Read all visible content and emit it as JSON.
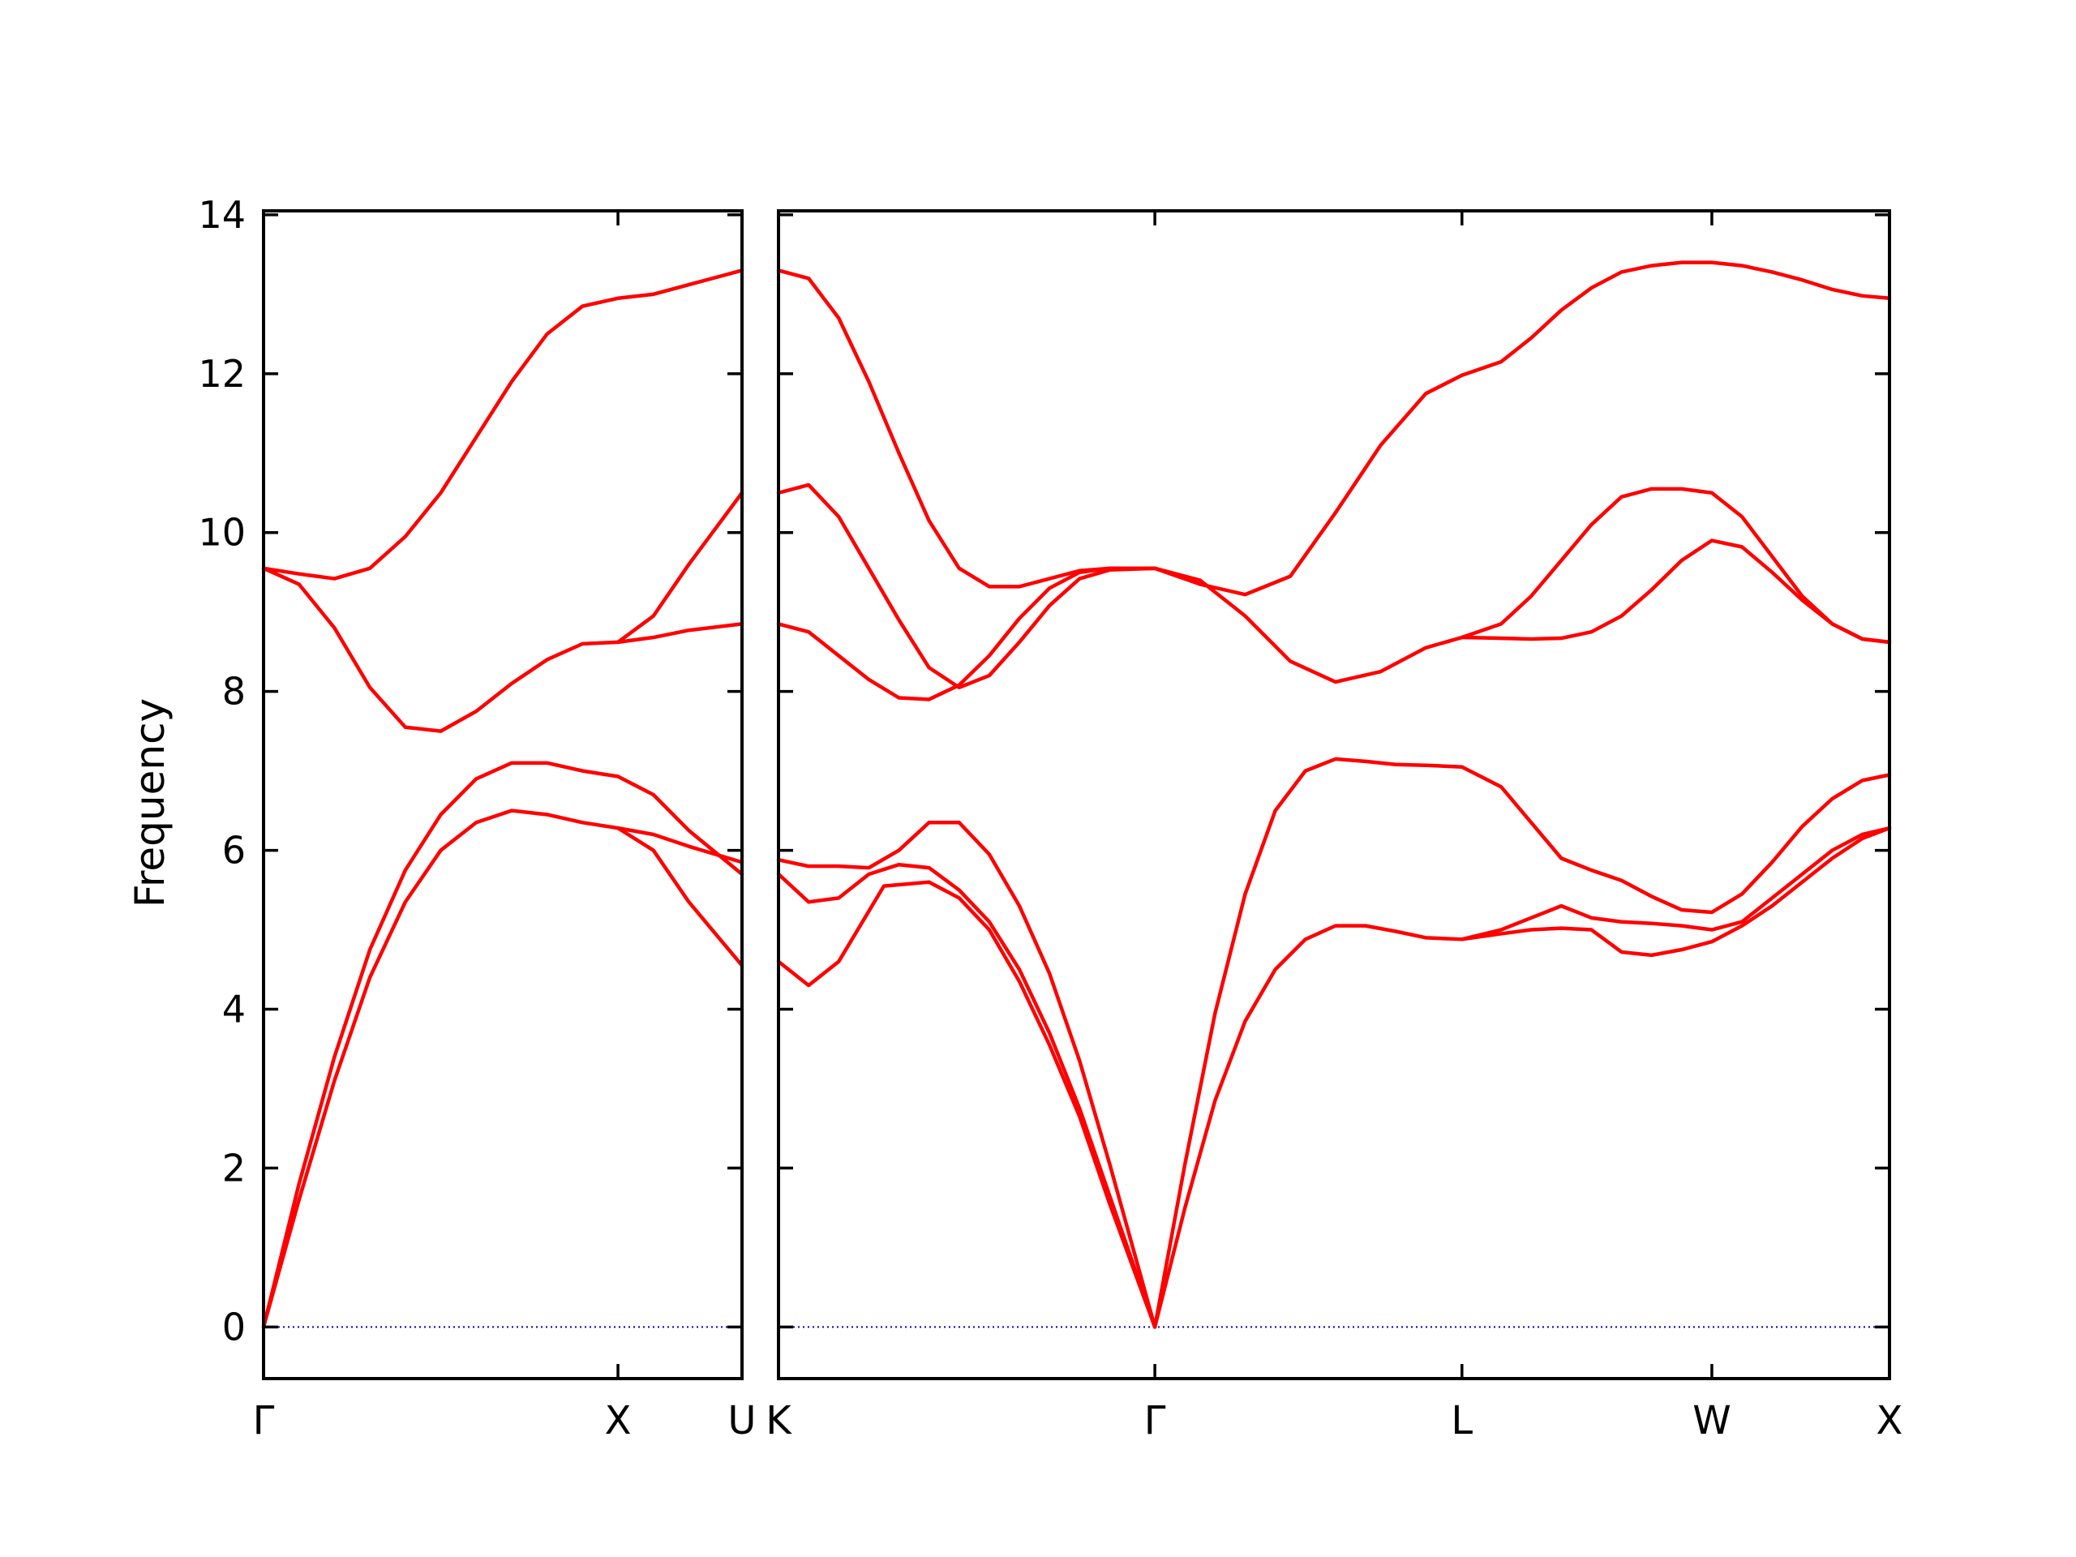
{
  "chart_data": {
    "type": "line",
    "ylabel": "Frequency",
    "ylim": [
      -0.65,
      14.05
    ],
    "yticks": [
      0,
      2,
      4,
      6,
      8,
      10,
      12,
      14
    ],
    "grid": false,
    "legend": "none",
    "colors": {
      "band": "#ff0000",
      "zero_line": "#0000cc"
    },
    "panels": [
      {
        "name": "gamma-x-u",
        "x_range": [
          0,
          1.35
        ],
        "high_symmetry_points": [
          {
            "label": "Γ",
            "x": 0
          },
          {
            "label": "X",
            "x": 1.0
          },
          {
            "label": "U",
            "x": 1.35
          }
        ],
        "bands": [
          {
            "x": [
              0,
              0.1,
              0.2,
              0.3,
              0.4,
              0.5,
              0.6,
              0.7,
              0.8,
              0.9,
              1.0,
              1.1,
              1.2,
              1.35
            ],
            "y": [
              0,
              1.6,
              3.1,
              4.4,
              5.35,
              6.0,
              6.35,
              6.5,
              6.45,
              6.35,
              6.28,
              6.2,
              6.05,
              5.85
            ]
          },
          {
            "x": [
              0,
              0.1,
              0.2,
              0.3,
              0.4,
              0.5,
              0.6,
              0.7,
              0.8,
              0.9,
              1.0,
              1.1,
              1.2,
              1.35
            ],
            "y": [
              0,
              1.8,
              3.4,
              4.75,
              5.75,
              6.45,
              6.9,
              7.1,
              7.1,
              7.0,
              6.93,
              6.7,
              6.25,
              5.7
            ]
          },
          {
            "x": [
              1.0,
              1.1,
              1.2,
              1.35
            ],
            "y": [
              6.28,
              6.0,
              5.35,
              4.55
            ]
          },
          {
            "x": [
              0,
              0.1,
              0.2,
              0.3,
              0.4,
              0.5,
              0.6,
              0.7,
              0.8,
              0.9,
              1.0,
              1.1,
              1.2,
              1.35
            ],
            "y": [
              9.55,
              9.35,
              8.8,
              8.05,
              7.55,
              7.5,
              7.75,
              8.1,
              8.4,
              8.6,
              8.62,
              8.68,
              8.77,
              8.85
            ]
          },
          {
            "x": [
              1.0,
              1.1,
              1.2,
              1.35
            ],
            "y": [
              8.62,
              8.95,
              9.6,
              10.5
            ]
          },
          {
            "x": [
              0,
              0.1,
              0.2,
              0.3,
              0.4,
              0.5,
              0.6,
              0.7,
              0.8,
              0.9,
              1.0,
              1.1,
              1.2,
              1.35
            ],
            "y": [
              9.55,
              9.48,
              9.42,
              9.55,
              9.95,
              10.5,
              11.2,
              11.9,
              12.5,
              12.85,
              12.95,
              13.0,
              13.12,
              13.3
            ]
          }
        ]
      },
      {
        "name": "k-gamma-l-w-x",
        "x_range": [
          0,
          3.69
        ],
        "high_symmetry_points": [
          {
            "label": "K",
            "x": 0
          },
          {
            "label": "Γ",
            "x": 1.25
          },
          {
            "label": "L",
            "x": 2.27
          },
          {
            "label": "W",
            "x": 3.1
          },
          {
            "label": "X",
            "x": 3.69
          }
        ],
        "bands": [
          {
            "x": [
              0,
              0.1,
              0.2,
              0.35,
              0.5,
              0.6,
              0.7,
              0.8,
              0.9,
              1.0,
              1.1,
              1.25
            ],
            "y": [
              4.6,
              4.3,
              4.6,
              5.55,
              5.6,
              5.4,
              5.0,
              4.35,
              3.55,
              2.65,
              1.55,
              0
            ]
          },
          {
            "x": [
              0,
              0.1,
              0.2,
              0.3,
              0.4,
              0.5,
              0.6,
              0.7,
              0.8,
              0.9,
              1.0,
              1.1,
              1.25
            ],
            "y": [
              5.7,
              5.35,
              5.4,
              5.7,
              5.82,
              5.78,
              5.5,
              5.1,
              4.5,
              3.7,
              2.75,
              1.65,
              0
            ]
          },
          {
            "x": [
              0,
              0.1,
              0.2,
              0.3,
              0.4,
              0.5,
              0.6,
              0.7,
              0.8,
              0.9,
              1.0,
              1.1,
              1.25
            ],
            "y": [
              5.88,
              5.8,
              5.8,
              5.78,
              6.0,
              6.35,
              6.35,
              5.95,
              5.3,
              4.45,
              3.35,
              2.05,
              0
            ]
          },
          {
            "x": [
              0,
              0.1,
              0.2,
              0.3,
              0.4,
              0.5,
              0.6,
              0.7,
              0.8,
              0.9,
              1.0,
              1.1,
              1.25
            ],
            "y": [
              8.85,
              8.75,
              8.45,
              8.15,
              7.92,
              7.9,
              8.08,
              8.45,
              8.92,
              9.3,
              9.5,
              9.55,
              9.55
            ]
          },
          {
            "x": [
              0,
              0.1,
              0.2,
              0.3,
              0.4,
              0.5,
              0.6,
              0.7,
              0.8,
              0.9,
              1.0,
              1.1,
              1.25
            ],
            "y": [
              10.5,
              10.6,
              10.2,
              9.55,
              8.9,
              8.3,
              8.05,
              8.2,
              8.62,
              9.08,
              9.42,
              9.53,
              9.55
            ]
          },
          {
            "x": [
              0,
              0.1,
              0.2,
              0.3,
              0.4,
              0.5,
              0.6,
              0.7,
              0.8,
              0.9,
              1.0,
              1.1,
              1.25
            ],
            "y": [
              13.3,
              13.2,
              12.7,
              11.9,
              11.0,
              10.15,
              9.55,
              9.32,
              9.32,
              9.42,
              9.52,
              9.55,
              9.55
            ]
          },
          {
            "x": [
              1.25,
              1.35,
              1.45,
              1.55,
              1.65,
              1.75,
              1.85,
              1.95,
              2.05,
              2.15,
              2.27
            ],
            "y": [
              0,
              1.5,
              2.85,
              3.85,
              4.5,
              4.88,
              5.05,
              5.05,
              4.98,
              4.9,
              4.88
            ]
          },
          {
            "x": [
              1.25,
              1.35,
              1.45,
              1.55,
              1.65,
              1.75,
              1.85,
              1.95,
              2.05,
              2.15,
              2.27
            ],
            "y": [
              0,
              2.05,
              3.95,
              5.45,
              6.5,
              7.0,
              7.15,
              7.12,
              7.08,
              7.07,
              7.05
            ]
          },
          {
            "x": [
              1.25,
              1.4,
              1.55,
              1.7,
              1.85,
              2.0,
              2.15,
              2.27
            ],
            "y": [
              9.55,
              9.4,
              8.95,
              8.38,
              8.12,
              8.25,
              8.55,
              8.68
            ]
          },
          {
            "x": [
              1.25,
              1.4,
              1.55,
              1.7,
              1.85,
              2.0,
              2.15,
              2.27
            ],
            "y": [
              9.55,
              9.35,
              9.22,
              9.45,
              10.25,
              11.1,
              11.75,
              11.98
            ]
          },
          {
            "x": [
              2.27,
              2.4,
              2.5,
              2.6,
              2.7,
              2.8,
              2.9,
              3.0,
              3.1,
              3.2,
              3.3,
              3.4,
              3.5,
              3.6,
              3.69
            ],
            "y": [
              4.88,
              4.95,
              5.0,
              5.02,
              5.0,
              4.72,
              4.68,
              4.75,
              4.85,
              5.05,
              5.3,
              5.6,
              5.9,
              6.15,
              6.28
            ]
          },
          {
            "x": [
              2.27,
              2.4,
              2.5,
              2.6,
              2.7,
              2.8,
              2.9,
              3.0,
              3.1,
              3.2,
              3.3,
              3.4,
              3.5,
              3.6,
              3.69
            ],
            "y": [
              4.88,
              5.0,
              5.15,
              5.3,
              5.15,
              5.1,
              5.08,
              5.05,
              5.0,
              5.1,
              5.4,
              5.7,
              6.0,
              6.2,
              6.28
            ]
          },
          {
            "x": [
              2.27,
              2.4,
              2.5,
              2.6,
              2.7,
              2.8,
              2.9,
              3.0,
              3.1,
              3.2,
              3.3,
              3.4,
              3.5,
              3.6,
              3.69
            ],
            "y": [
              7.05,
              6.8,
              6.35,
              5.9,
              5.75,
              5.62,
              5.42,
              5.25,
              5.22,
              5.45,
              5.85,
              6.3,
              6.65,
              6.88,
              6.95
            ]
          },
          {
            "x": [
              2.27,
              2.4,
              2.5,
              2.6,
              2.7,
              2.8,
              2.9,
              3.0,
              3.1,
              3.2,
              3.3,
              3.4,
              3.5,
              3.6,
              3.69
            ],
            "y": [
              8.68,
              8.67,
              8.66,
              8.67,
              8.75,
              8.95,
              9.28,
              9.65,
              9.9,
              9.82,
              9.5,
              9.15,
              8.85,
              8.66,
              8.62
            ]
          },
          {
            "x": [
              2.27,
              2.4,
              2.5,
              2.6,
              2.7,
              2.8,
              2.9,
              3.0,
              3.1,
              3.2,
              3.3,
              3.4,
              3.5,
              3.6,
              3.69
            ],
            "y": [
              8.68,
              8.85,
              9.2,
              9.65,
              10.1,
              10.45,
              10.55,
              10.55,
              10.5,
              10.2,
              9.7,
              9.2,
              8.85,
              8.66,
              8.62
            ]
          },
          {
            "x": [
              2.27,
              2.4,
              2.5,
              2.6,
              2.7,
              2.8,
              2.9,
              3.0,
              3.1,
              3.2,
              3.3,
              3.4,
              3.5,
              3.6,
              3.69
            ],
            "y": [
              11.98,
              12.15,
              12.45,
              12.8,
              13.08,
              13.28,
              13.36,
              13.4,
              13.4,
              13.36,
              13.28,
              13.18,
              13.06,
              12.98,
              12.95
            ]
          }
        ]
      }
    ]
  }
}
